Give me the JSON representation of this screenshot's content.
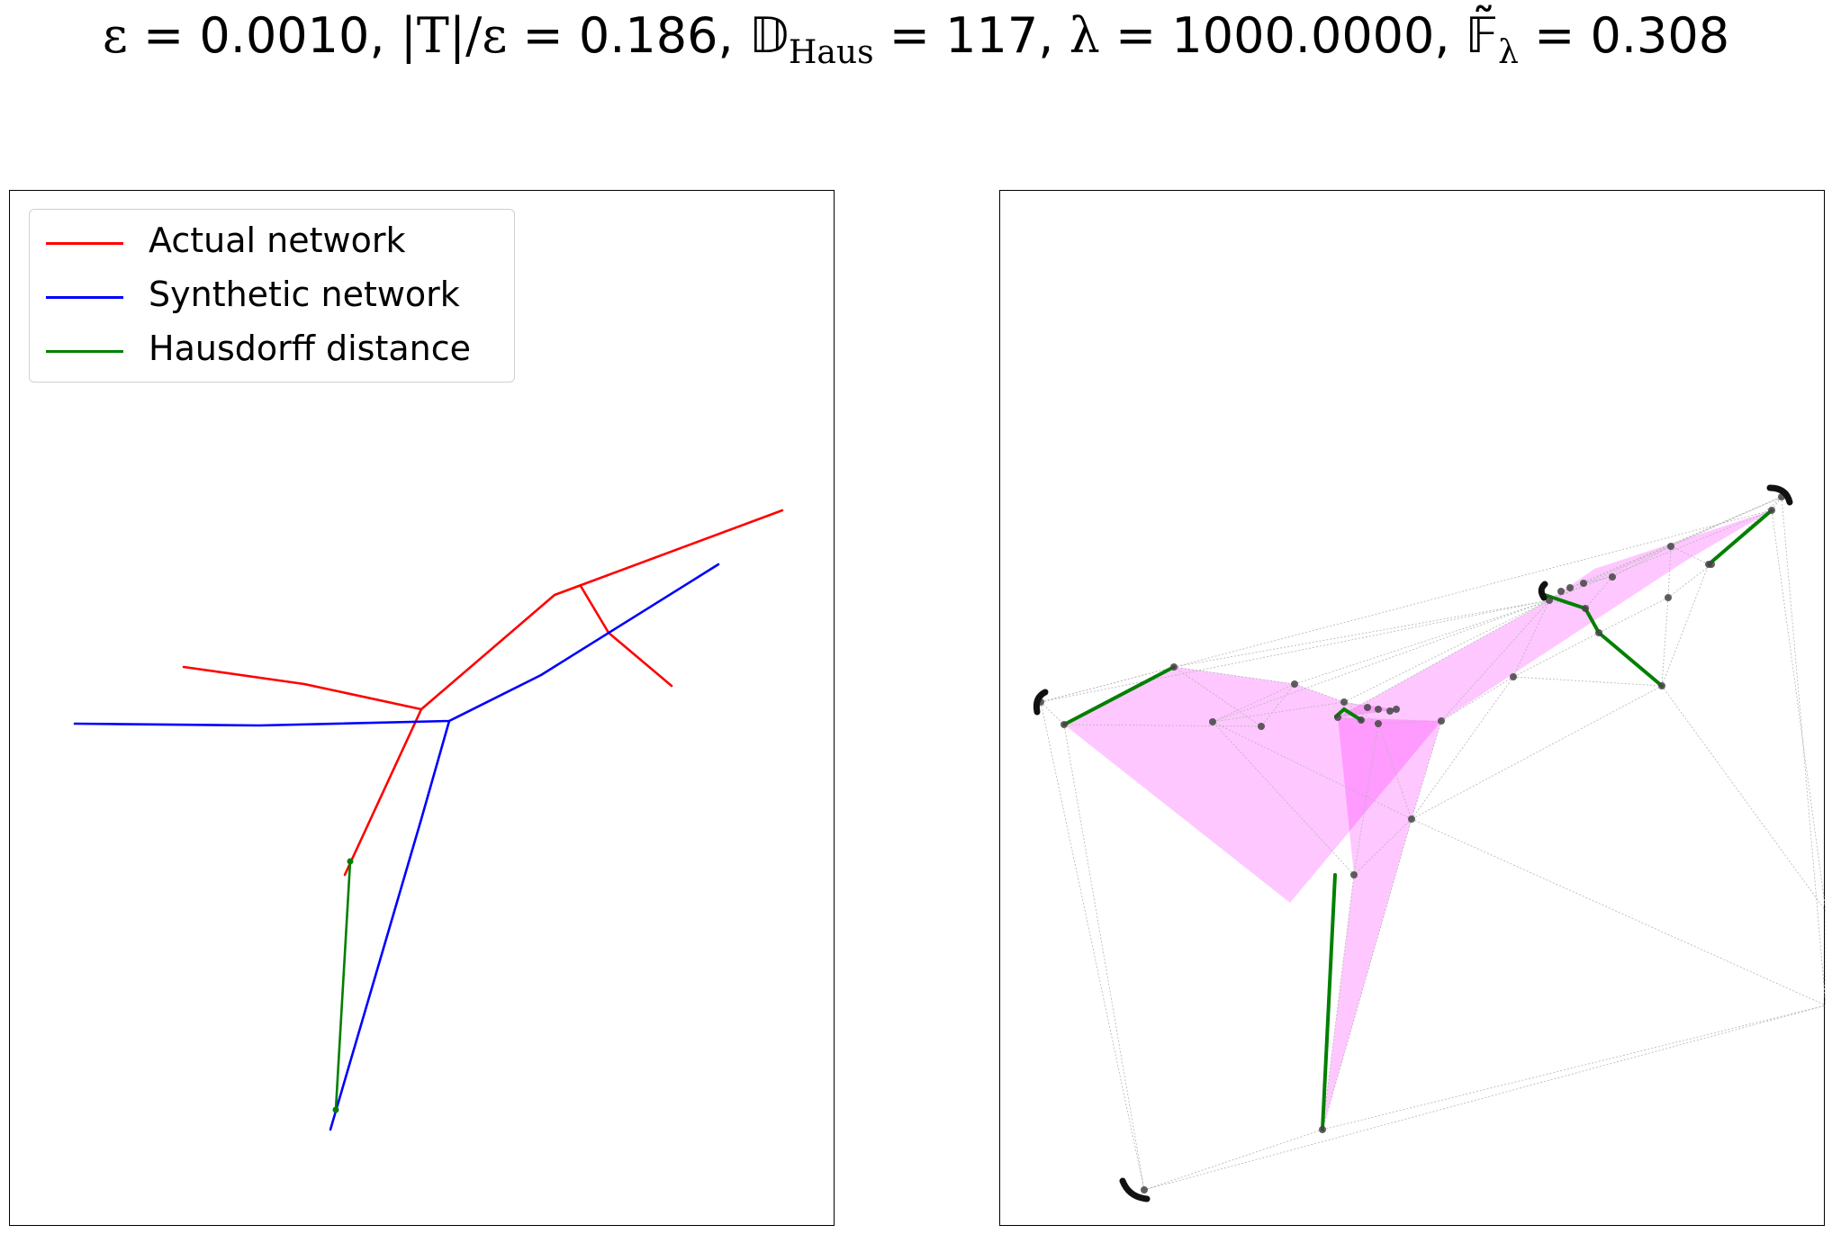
{
  "title": {
    "eps_sym": "ε",
    "eq": " = ",
    "eps_val": "0.0010",
    "sep": ", ",
    "t_expr": "|T|/ε",
    "t_val": "0.186",
    "d_sym": "𝔻",
    "d_sub": "Haus",
    "d_val": "117",
    "lambda_sym": "λ",
    "lambda_val": "1000.0000",
    "f_sym": "𝔽̃",
    "f_sub": "λ",
    "f_val": "0.308"
  },
  "legend": {
    "items": [
      {
        "label": "Actual network",
        "color": "#ff0000"
      },
      {
        "label": "Synthetic network",
        "color": "#0000ff"
      },
      {
        "label": "Hausdorff distance",
        "color": "#008000"
      }
    ]
  },
  "colors": {
    "actual": "#ff0000",
    "synthetic": "#0000ff",
    "hausdorff": "#008000",
    "fill": "#ff00ff",
    "mesh": "#b4b4b4",
    "node": "#444444"
  }
}
